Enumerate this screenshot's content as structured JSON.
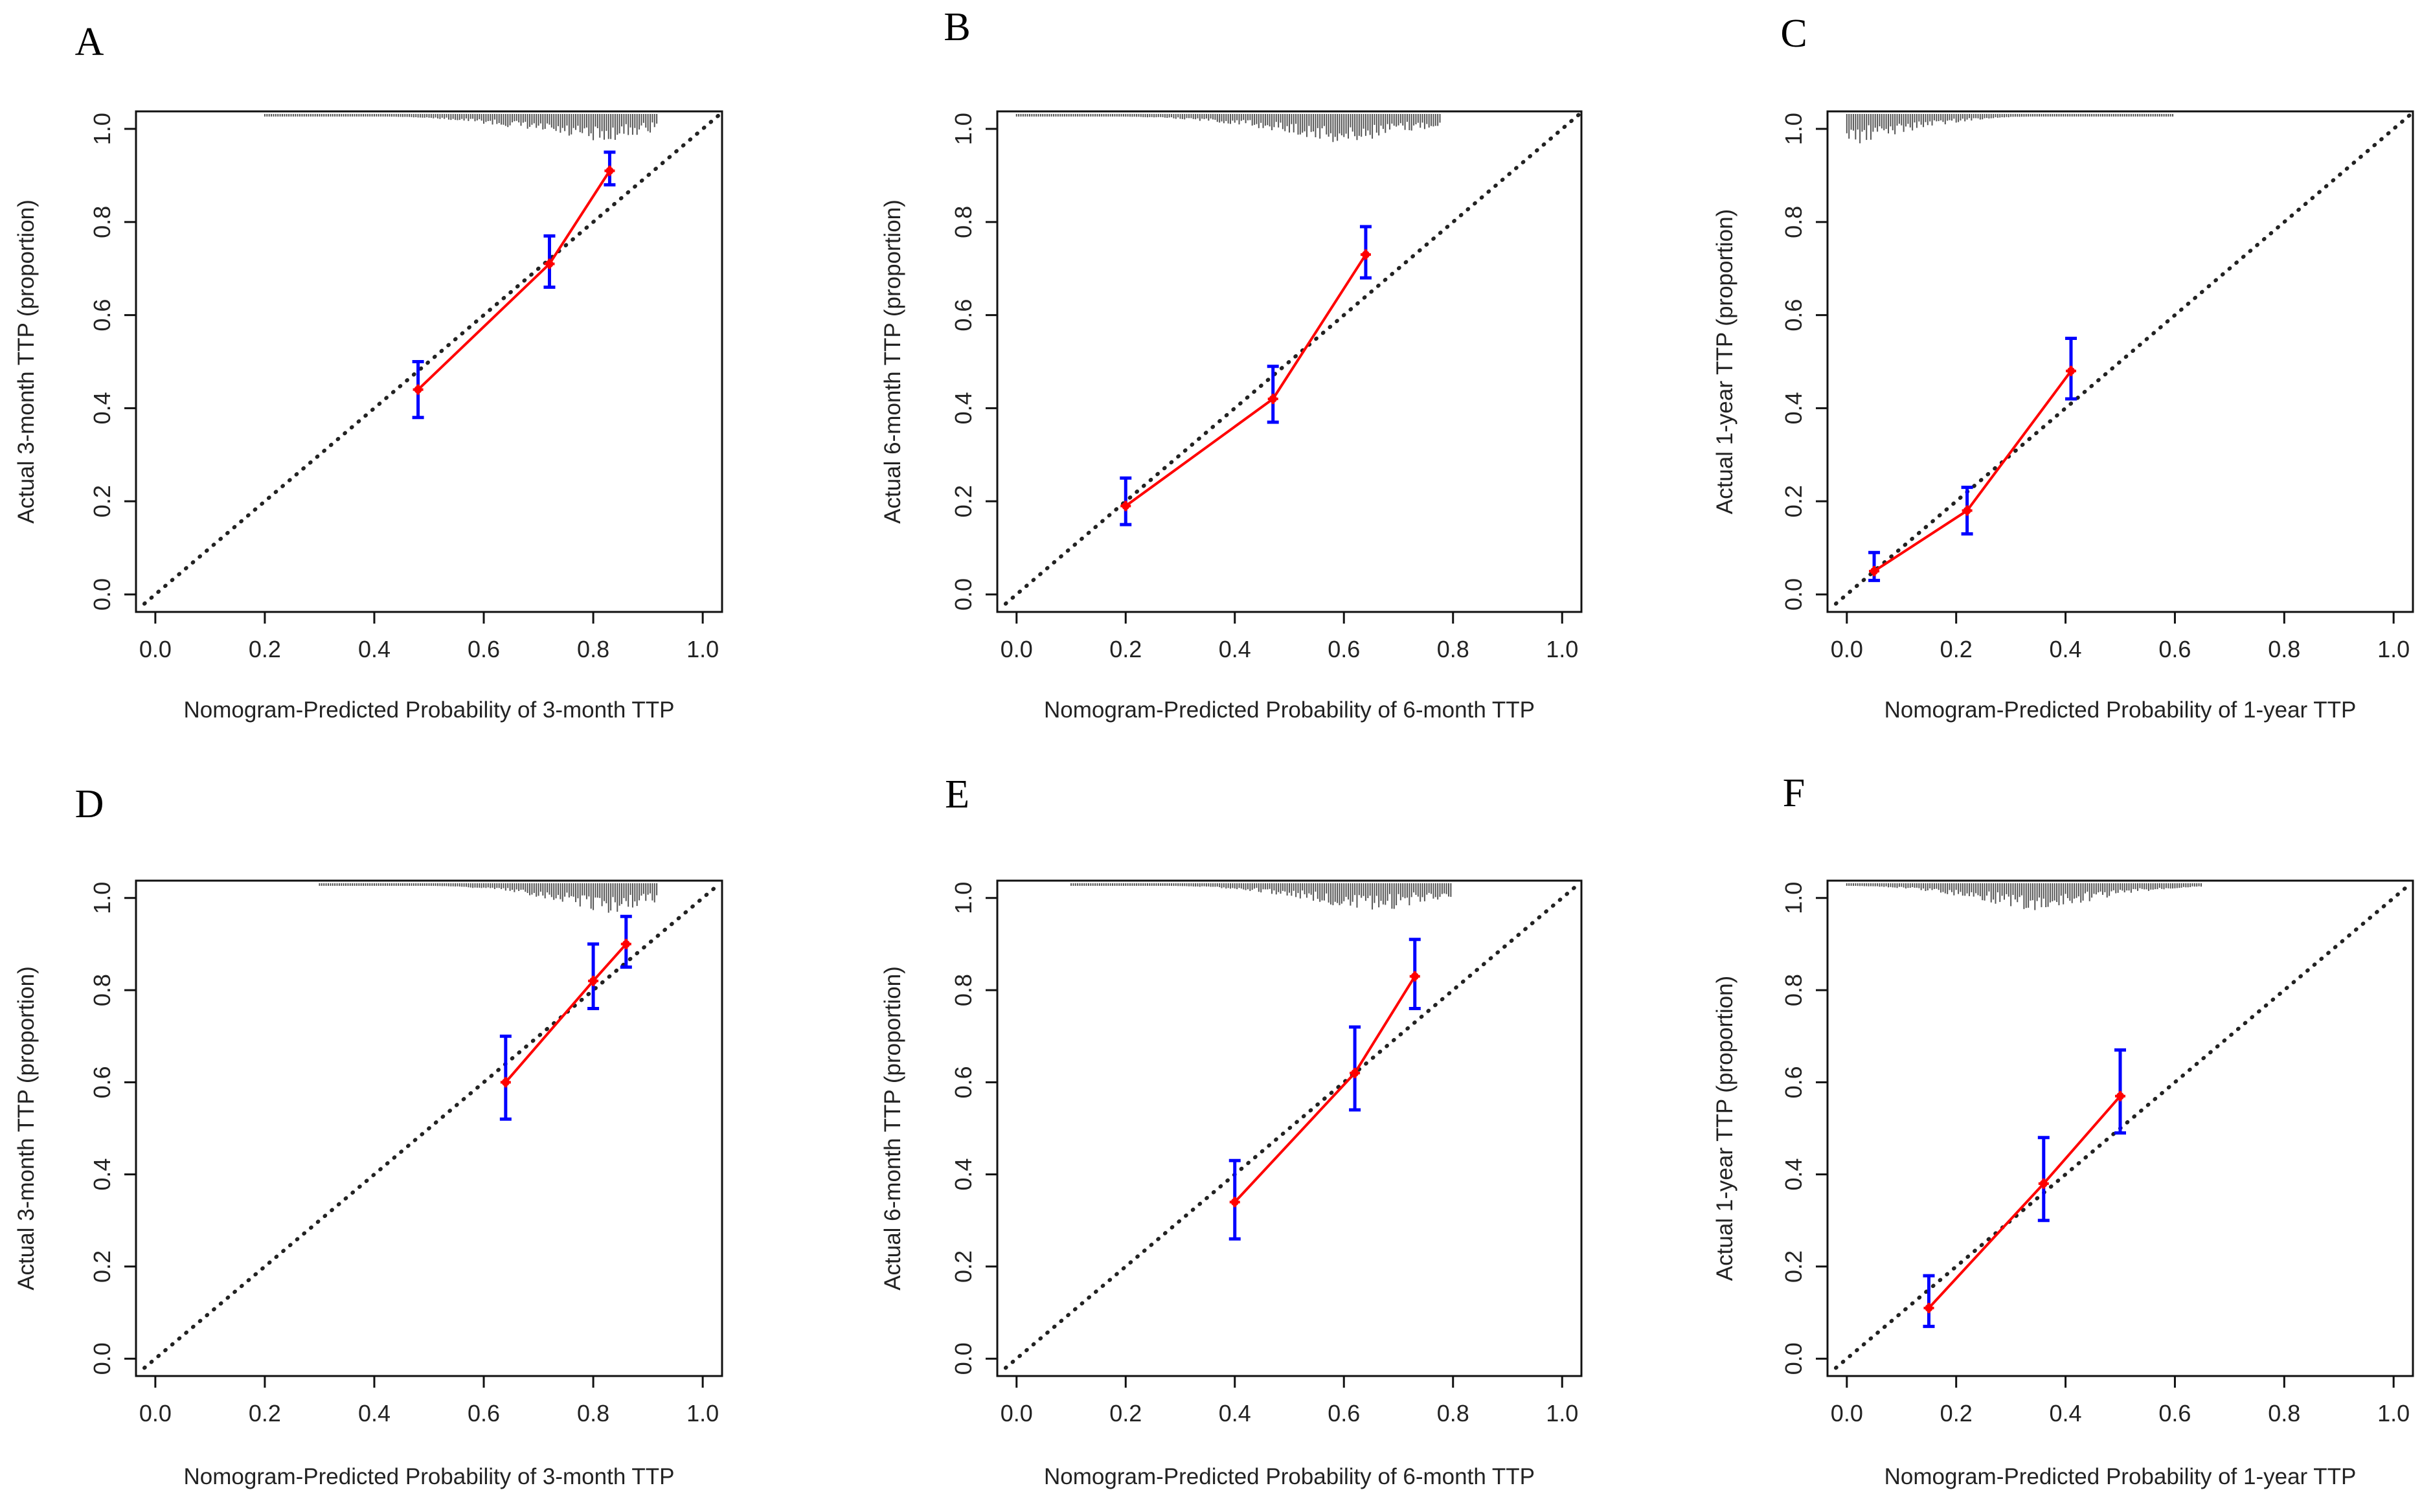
{
  "chart_data": [
    {
      "panel": "A",
      "type": "scatter",
      "xlabel": "Nomogram-Predicted Probability of 3-month TTP",
      "ylabel": "Actual 3-month TTP (proportion)",
      "xlim": [
        0,
        1.0
      ],
      "ylim": [
        0,
        1.0
      ],
      "xticks": [
        "0.0",
        "0.2",
        "0.4",
        "0.6",
        "0.8",
        "1.0"
      ],
      "yticks": [
        "0.0",
        "0.2",
        "0.4",
        "0.6",
        "0.8",
        "1.0"
      ],
      "points": [
        {
          "x": 0.48,
          "y": 0.44,
          "lo": 0.38,
          "hi": 0.5
        },
        {
          "x": 0.72,
          "y": 0.71,
          "lo": 0.66,
          "hi": 0.77
        },
        {
          "x": 0.83,
          "y": 0.91,
          "lo": 0.88,
          "hi": 0.95
        }
      ],
      "rug_range": [
        0.2,
        0.92
      ],
      "rug_peak": 0.8
    },
    {
      "panel": "B",
      "type": "scatter",
      "xlabel": "Nomogram-Predicted Probability of 6-month TTP",
      "ylabel": "Actual 6-month TTP (proportion)",
      "xlim": [
        0,
        1.0
      ],
      "ylim": [
        0,
        1.0
      ],
      "xticks": [
        "0.0",
        "0.2",
        "0.4",
        "0.6",
        "0.8",
        "1.0"
      ],
      "yticks": [
        "0.0",
        "0.2",
        "0.4",
        "0.6",
        "0.8",
        "1.0"
      ],
      "points": [
        {
          "x": 0.2,
          "y": 0.19,
          "lo": 0.15,
          "hi": 0.25
        },
        {
          "x": 0.47,
          "y": 0.42,
          "lo": 0.37,
          "hi": 0.49
        },
        {
          "x": 0.64,
          "y": 0.73,
          "lo": 0.68,
          "hi": 0.79
        }
      ],
      "rug_range": [
        0.0,
        0.78
      ],
      "rug_peak": 0.6
    },
    {
      "panel": "C",
      "type": "scatter",
      "xlabel": "Nomogram-Predicted Probability of 1-year TTP",
      "ylabel": "Actual 1-year TTP (proportion)",
      "xlim": [
        0,
        1.0
      ],
      "ylim": [
        0,
        1.0
      ],
      "xticks": [
        "0.0",
        "0.2",
        "0.4",
        "0.6",
        "0.8",
        "1.0"
      ],
      "yticks": [
        "0.0",
        "0.2",
        "0.4",
        "0.6",
        "0.8",
        "1.0"
      ],
      "points": [
        {
          "x": 0.05,
          "y": 0.05,
          "lo": 0.03,
          "hi": 0.09
        },
        {
          "x": 0.22,
          "y": 0.18,
          "lo": 0.13,
          "hi": 0.23
        },
        {
          "x": 0.41,
          "y": 0.48,
          "lo": 0.42,
          "hi": 0.55
        }
      ],
      "rug_range": [
        0.0,
        0.6
      ],
      "rug_peak": 0.02
    },
    {
      "panel": "D",
      "type": "scatter",
      "xlabel": "Nomogram-Predicted Probability of 3-month TTP",
      "ylabel": "Actual 3-month TTP (proportion)",
      "xlim": [
        0,
        1.0
      ],
      "ylim": [
        0,
        1.0
      ],
      "xticks": [
        "0.0",
        "0.2",
        "0.4",
        "0.6",
        "0.8",
        "1.0"
      ],
      "yticks": [
        "0.0",
        "0.2",
        "0.4",
        "0.6",
        "0.8",
        "1.0"
      ],
      "points": [
        {
          "x": 0.64,
          "y": 0.6,
          "lo": 0.52,
          "hi": 0.7
        },
        {
          "x": 0.8,
          "y": 0.82,
          "lo": 0.76,
          "hi": 0.9
        },
        {
          "x": 0.86,
          "y": 0.9,
          "lo": 0.85,
          "hi": 0.96
        }
      ],
      "rug_range": [
        0.3,
        0.92
      ],
      "rug_peak": 0.83
    },
    {
      "panel": "E",
      "type": "scatter",
      "xlabel": "Nomogram-Predicted Probability of 6-month TTP",
      "ylabel": "Actual 6-month TTP (proportion)",
      "xlim": [
        0,
        1.0
      ],
      "ylim": [
        0,
        1.0
      ],
      "xticks": [
        "0.0",
        "0.2",
        "0.4",
        "0.6",
        "0.8",
        "1.0"
      ],
      "yticks": [
        "0.0",
        "0.2",
        "0.4",
        "0.6",
        "0.8",
        "1.0"
      ],
      "points": [
        {
          "x": 0.4,
          "y": 0.34,
          "lo": 0.26,
          "hi": 0.43
        },
        {
          "x": 0.62,
          "y": 0.62,
          "lo": 0.54,
          "hi": 0.72
        },
        {
          "x": 0.73,
          "y": 0.83,
          "lo": 0.76,
          "hi": 0.91
        }
      ],
      "rug_range": [
        0.1,
        0.8
      ],
      "rug_peak": 0.65
    },
    {
      "panel": "F",
      "type": "scatter",
      "xlabel": "Nomogram-Predicted Probability of 1-year TTP",
      "ylabel": "Actual 1-year TTP (proportion)",
      "xlim": [
        0,
        1.0
      ],
      "ylim": [
        0,
        1.0
      ],
      "xticks": [
        "0.0",
        "0.2",
        "0.4",
        "0.6",
        "0.8",
        "1.0"
      ],
      "yticks": [
        "0.0",
        "0.2",
        "0.4",
        "0.6",
        "0.8",
        "1.0"
      ],
      "points": [
        {
          "x": 0.15,
          "y": 0.11,
          "lo": 0.07,
          "hi": 0.18
        },
        {
          "x": 0.36,
          "y": 0.38,
          "lo": 0.3,
          "hi": 0.48
        },
        {
          "x": 0.5,
          "y": 0.57,
          "lo": 0.49,
          "hi": 0.67
        }
      ],
      "rug_range": [
        0.0,
        0.65
      ],
      "rug_peak": 0.35
    }
  ],
  "colors": {
    "calibration_line": "#ff0000",
    "error_bar": "#0000ff",
    "reference_line": "#222222",
    "rug": "#555555"
  }
}
